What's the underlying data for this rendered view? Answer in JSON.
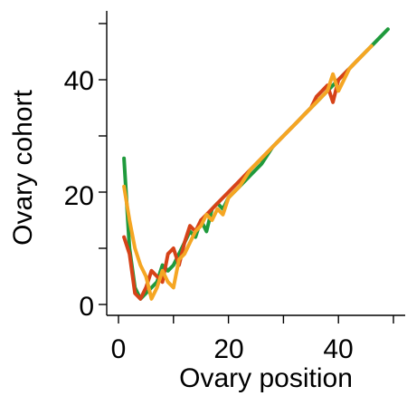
{
  "chart_data": {
    "type": "line",
    "xlabel": "Ovary position",
    "ylabel": "Ovary cohort",
    "xlim": [
      -1,
      52
    ],
    "ylim": [
      -2,
      53
    ],
    "xticks_labeled": [
      0,
      20,
      40
    ],
    "xticks_minor": [
      10,
      30,
      50
    ],
    "yticks_labeled": [
      0,
      20,
      40
    ],
    "yticks_minor": [
      10,
      30,
      50
    ],
    "grid": false,
    "series": [
      {
        "color": "#1f9a3c",
        "x": [
          1,
          2,
          3,
          4,
          5,
          6,
          7,
          8,
          9,
          10,
          11,
          12,
          13,
          14,
          15,
          16,
          17,
          18,
          19,
          20,
          22,
          24,
          26,
          28,
          30,
          32,
          34,
          36,
          38,
          40,
          42,
          44,
          46,
          49
        ],
        "y": [
          26,
          10,
          3,
          1,
          2,
          3,
          4,
          7,
          6,
          7,
          9,
          11,
          13,
          12,
          15,
          13,
          17,
          18,
          17,
          19,
          21,
          23,
          25,
          28,
          30,
          32,
          34,
          36,
          38,
          40,
          42,
          44,
          46,
          49
        ]
      },
      {
        "color": "#d64218",
        "x": [
          1,
          2,
          3,
          4,
          5,
          6,
          7,
          8,
          9,
          10,
          11,
          12,
          13,
          14,
          15,
          16,
          17,
          18,
          20,
          22,
          24,
          26,
          28,
          30,
          32,
          34,
          35,
          36,
          37,
          38,
          39,
          40,
          42,
          44
        ],
        "y": [
          12,
          9,
          2,
          1,
          3,
          6,
          5,
          4,
          9,
          10,
          7,
          11,
          14,
          13,
          15,
          16,
          17,
          18,
          20,
          22,
          24,
          26,
          28,
          30,
          32,
          34,
          35,
          37,
          38,
          39,
          36,
          40,
          42,
          44
        ]
      },
      {
        "color": "#f5a623",
        "x": [
          1,
          2,
          3,
          4,
          5,
          6,
          7,
          8,
          9,
          10,
          11,
          12,
          13,
          14,
          15,
          16,
          17,
          18,
          19,
          20,
          22,
          24,
          26,
          28,
          30,
          32,
          34,
          36,
          38,
          39,
          40,
          42,
          44,
          46
        ],
        "y": [
          21,
          15,
          10,
          7,
          5,
          1,
          3,
          6,
          4,
          3,
          8,
          9,
          11,
          13,
          14,
          16,
          15,
          17,
          16,
          19,
          21,
          24,
          26,
          28,
          30,
          32,
          34,
          36,
          38,
          41,
          38,
          42,
          44,
          46
        ]
      }
    ]
  }
}
